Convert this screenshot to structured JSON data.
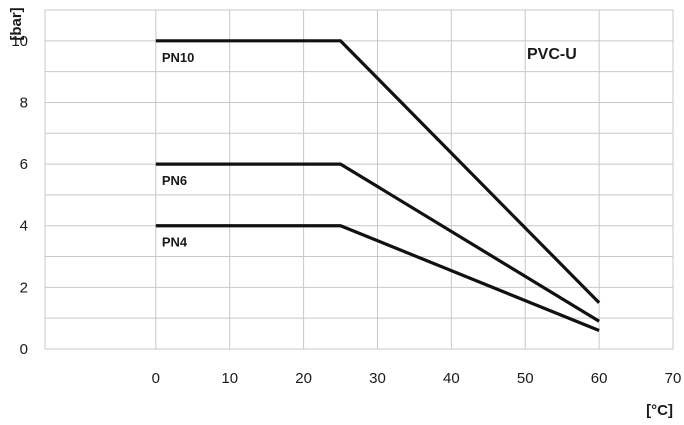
{
  "chart_data": {
    "type": "line",
    "title": "",
    "annotation": "PVC-U",
    "xlabel": "[°C]",
    "ylabel": "[bar]",
    "xlim": [
      -15,
      70
    ],
    "ylim": [
      0,
      11
    ],
    "x_ticks": [
      0,
      10,
      20,
      30,
      40,
      50,
      60,
      70
    ],
    "y_ticks": [
      0,
      2,
      4,
      6,
      8,
      10
    ],
    "grid": true,
    "legend": "none",
    "line_color": "#111111",
    "grid_color": "#c8c8c8",
    "series": [
      {
        "name": "PN10",
        "x": [
          0,
          25,
          60
        ],
        "y": [
          10,
          10,
          1.5
        ]
      },
      {
        "name": "PN6",
        "x": [
          0,
          25,
          60
        ],
        "y": [
          6,
          6,
          0.9
        ]
      },
      {
        "name": "PN4",
        "x": [
          0,
          25,
          60
        ],
        "y": [
          4,
          4,
          0.6
        ]
      }
    ]
  }
}
